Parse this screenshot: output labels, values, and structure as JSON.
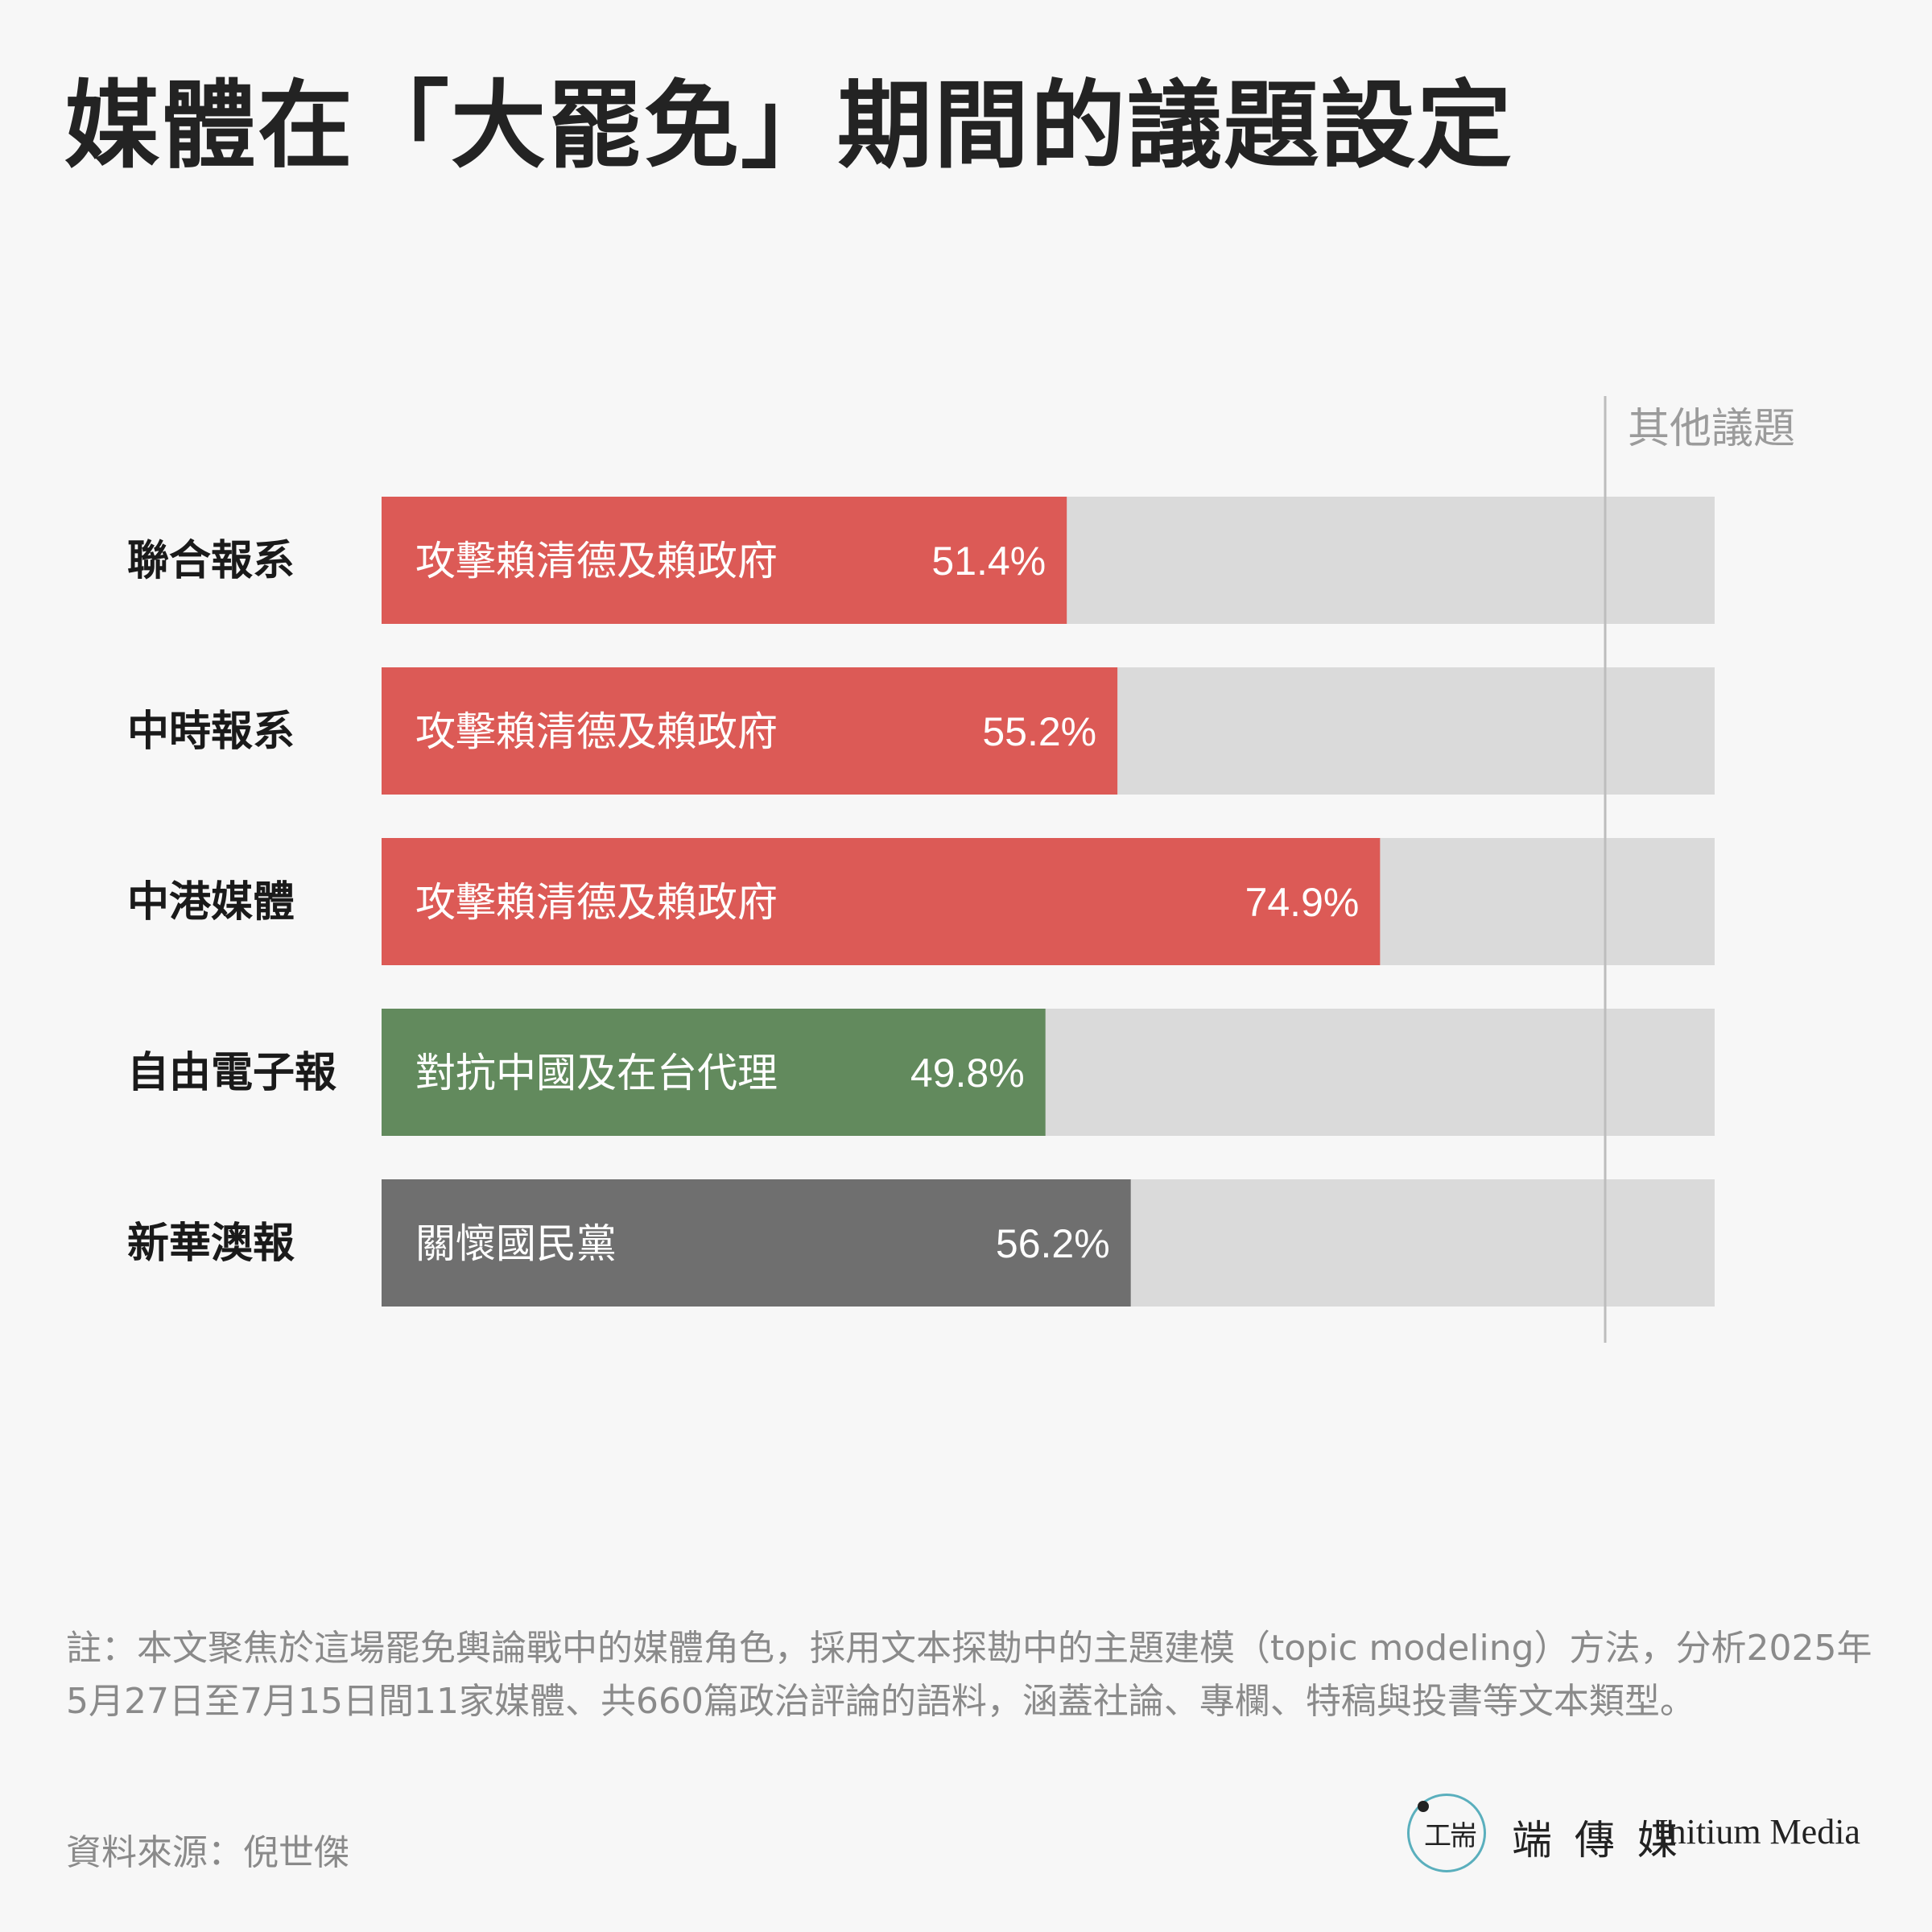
{
  "title": "媒體在「大罷免」期間的議題設定",
  "chart_data": {
    "type": "bar",
    "orientation": "horizontal",
    "stacked_100": true,
    "remainder_label": "其他議題",
    "xlim": [
      0,
      100
    ],
    "categories": [
      "聯合報系",
      "中時報系",
      "中港媒體",
      "自由電子報",
      "新華澳報"
    ],
    "bars": [
      {
        "category": "聯合報系",
        "topic": "攻擊賴清德及賴政府",
        "value": 51.4,
        "value_label": "51.4%",
        "color": "#dc5a56"
      },
      {
        "category": "中時報系",
        "topic": "攻擊賴清德及賴政府",
        "value": 55.2,
        "value_label": "55.2%",
        "color": "#dc5a56"
      },
      {
        "category": "中港媒體",
        "topic": "攻擊賴清德及賴政府",
        "value": 74.9,
        "value_label": "74.9%",
        "color": "#dc5a56"
      },
      {
        "category": "自由電子報",
        "topic": "對抗中國及在台代理",
        "value": 49.8,
        "value_label": "49.8%",
        "color": "#628a5d"
      },
      {
        "category": "新華澳報",
        "topic": "關懷國民黨",
        "value": 56.2,
        "value_label": "56.2%",
        "color": "#6f6f6f"
      }
    ],
    "remainder_color": "#dadada",
    "divider_color": "#bdbdbd"
  },
  "footnote": "註：本文聚焦於這場罷免輿論戰中的媒體角色，採用文本探勘中的主題建模（topic modeling）方法，分析2025年5月27日至7月15日間11家媒體、共660篇政治評論的語料，涵蓋社論、專欄、特稿與投書等文本類型。",
  "source": "資料來源：倪世傑",
  "brand": {
    "icon": "initium-logo-icon",
    "logo_glyph": "工耑",
    "name_cn": "端 傳 媒",
    "name_en": "Initium Media"
  }
}
